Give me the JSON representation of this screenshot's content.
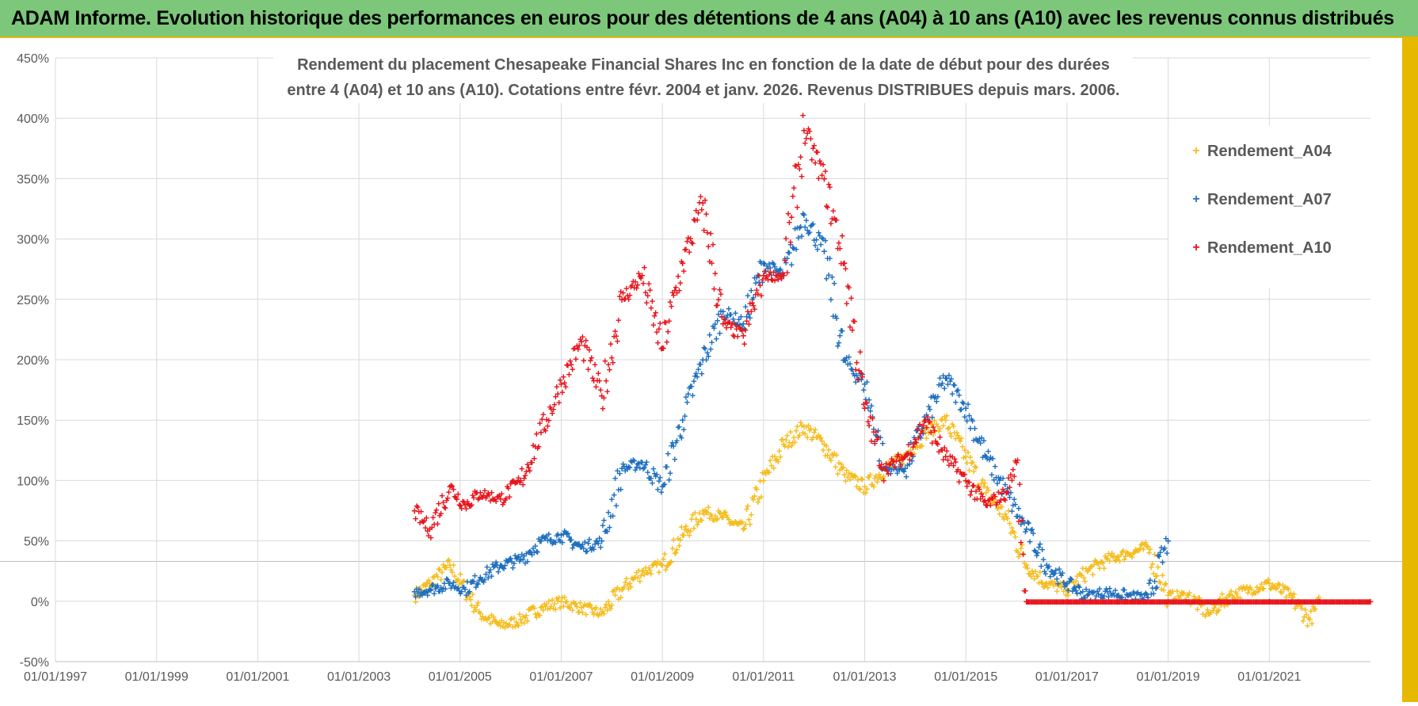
{
  "banner": {
    "title": "ADAM Informe. Evolution historique des performances en euros pour des détentions de 4 ans (A04) à 10 ans (A10) avec les revenus connus distribués",
    "background": "#7cc77a"
  },
  "chart_data": {
    "type": "scatter",
    "title_line1": "Rendement du placement Chesapeake Financial Shares Inc en fonction de la date de début pour des durées",
    "title_line2": "entre 4 (A04) et 10 ans (A10). Cotations entre févr. 2004 et janv. 2026. Revenus DISTRIBUES depuis mars. 2006.",
    "xlabel": "",
    "ylabel": "",
    "xlim": [
      1997.0,
      2023.0
    ],
    "ylim": [
      -50,
      450
    ],
    "grid": true,
    "y_ticks": [
      -50,
      0,
      50,
      100,
      150,
      200,
      250,
      300,
      350,
      400,
      450
    ],
    "y_tick_labels": [
      "-50%",
      "0%",
      "50%",
      "100%",
      "150%",
      "200%",
      "250%",
      "300%",
      "350%",
      "400%",
      "450%"
    ],
    "x_ticks": [
      1997,
      1999,
      2001,
      2003,
      2005,
      2007,
      2009,
      2011,
      2013,
      2015,
      2017,
      2019,
      2021
    ],
    "x_tick_labels": [
      "01/01/1997",
      "01/01/1999",
      "01/01/2001",
      "01/01/2003",
      "01/01/2005",
      "01/01/2007",
      "01/01/2009",
      "01/01/2011",
      "01/01/2013",
      "01/01/2015",
      "01/01/2017",
      "01/01/2019",
      "01/01/2021"
    ],
    "legend_position": "top-right",
    "marker": "+",
    "series": [
      {
        "name": "Rendement_A04",
        "color": "#f5bd1f",
        "x": [
          2004.1,
          2004.4,
          2004.8,
          2005.1,
          2005.4,
          2005.8,
          2006.2,
          2006.6,
          2007.0,
          2007.4,
          2007.8,
          2008.2,
          2008.6,
          2009.0,
          2009.4,
          2009.8,
          2010.2,
          2010.6,
          2011.0,
          2011.4,
          2011.8,
          2012.2,
          2012.6,
          2013.0,
          2013.4,
          2013.8,
          2014.2,
          2014.6,
          2015.0,
          2015.4,
          2015.8,
          2016.2,
          2016.6,
          2017.0,
          2017.4,
          2017.8,
          2018.2,
          2018.6,
          2019.0,
          2019.4,
          2019.8,
          2020.2,
          2020.6,
          2021.0,
          2021.4,
          2021.8,
          2022.0
        ],
        "values": [
          5,
          15,
          30,
          10,
          -10,
          -20,
          -15,
          -5,
          0,
          -5,
          -10,
          10,
          25,
          30,
          55,
          75,
          70,
          60,
          100,
          130,
          145,
          130,
          105,
          95,
          110,
          120,
          140,
          150,
          120,
          90,
          70,
          30,
          15,
          10,
          25,
          35,
          40,
          45,
          5,
          5,
          -10,
          5,
          10,
          15,
          5,
          -15,
          0
        ]
      },
      {
        "name": "Rendement_A07",
        "color": "#1f6fbf",
        "x": [
          2004.1,
          2004.4,
          2004.8,
          2005.1,
          2005.4,
          2005.8,
          2006.2,
          2006.6,
          2007.0,
          2007.4,
          2007.8,
          2008.2,
          2008.6,
          2009.0,
          2009.4,
          2009.8,
          2010.2,
          2010.6,
          2011.0,
          2011.4,
          2011.8,
          2012.2,
          2012.6,
          2013.0,
          2013.4,
          2013.8,
          2014.2,
          2014.6,
          2015.0,
          2015.4,
          2015.8,
          2016.2,
          2016.6,
          2017.0,
          2017.4,
          2017.8,
          2018.2,
          2018.6,
          2019.0
        ],
        "values": [
          8,
          10,
          15,
          10,
          20,
          30,
          35,
          50,
          55,
          45,
          50,
          110,
          115,
          95,
          150,
          200,
          240,
          230,
          280,
          270,
          320,
          290,
          200,
          180,
          110,
          110,
          150,
          185,
          160,
          120,
          90,
          60,
          30,
          15,
          5,
          8,
          5,
          3,
          50
        ]
      },
      {
        "name": "Rendement_A10",
        "color": "#e8141b",
        "x": [
          2004.1,
          2004.4,
          2004.8,
          2005.1,
          2005.4,
          2005.8,
          2006.2,
          2006.6,
          2007.0,
          2007.4,
          2007.8,
          2008.2,
          2008.6,
          2009.0,
          2009.4,
          2009.8,
          2010.2,
          2010.6,
          2011.0,
          2011.4,
          2011.8,
          2012.2,
          2012.6,
          2013.0,
          2013.4,
          2013.8,
          2014.2,
          2014.6,
          2015.0,
          2015.4,
          2015.8,
          2016.0,
          2016.2,
          2017.0,
          2018.0,
          2019.0,
          2020.0,
          2021.0,
          2022.0,
          2023.0
        ],
        "values": [
          75,
          60,
          95,
          80,
          90,
          85,
          100,
          140,
          180,
          215,
          170,
          250,
          270,
          210,
          280,
          330,
          230,
          220,
          270,
          270,
          390,
          350,
          280,
          160,
          110,
          120,
          150,
          120,
          100,
          80,
          90,
          115,
          0,
          0,
          0,
          0,
          0,
          0,
          0,
          0
        ]
      }
    ]
  }
}
